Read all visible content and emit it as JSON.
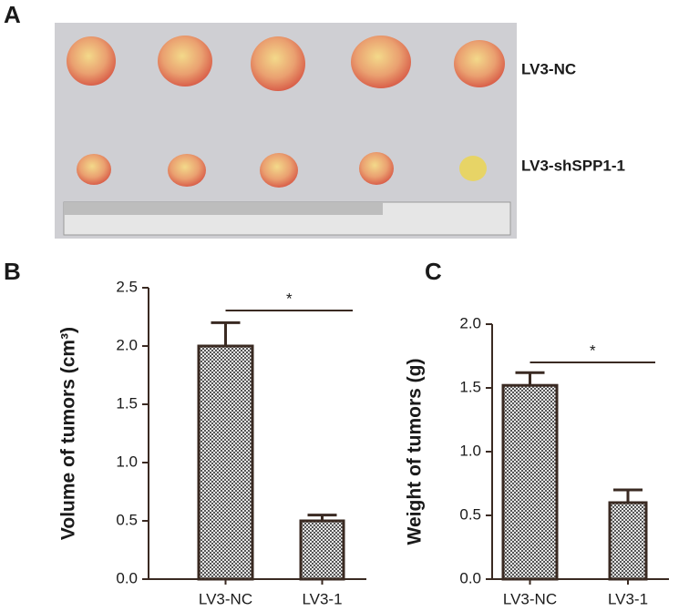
{
  "photo": {
    "panel_label": "A",
    "row_labels": [
      "LV3-NC",
      "LV3-shSPP1-1"
    ]
  },
  "chart_data": [
    {
      "type": "bar",
      "panel_label": "B",
      "y_label": "Volume of tumors (cm³)",
      "categories": [
        "LV3-NC",
        "LV3-1"
      ],
      "values": [
        2.0,
        0.5
      ],
      "errors": [
        0.2,
        0.05
      ],
      "ylim": [
        0,
        2.5
      ],
      "yticks": [
        {
          "value": 0,
          "label": "0.0"
        },
        0.5,
        {
          "value": 1,
          "label": "1.0"
        },
        1.5,
        {
          "value": 2,
          "label": "2.0"
        },
        2.5
      ],
      "annotations": [
        {
          "text": "*"
        }
      ]
    },
    {
      "type": "bar",
      "panel_label": "C",
      "y_label": "Weight of tumors (g)",
      "categories": [
        "LV3-NC",
        "LV3-1"
      ],
      "values": [
        1.52,
        0.6
      ],
      "errors": [
        0.1,
        0.1
      ],
      "ylim": [
        0,
        2.0
      ],
      "yticks": [
        {
          "value": 0,
          "label": "0.0"
        },
        0.5,
        {
          "value": 1,
          "label": "1.0"
        },
        1.5,
        {
          "value": 2,
          "label": "2.0"
        }
      ],
      "annotations": [
        {
          "text": "*"
        }
      ]
    }
  ]
}
